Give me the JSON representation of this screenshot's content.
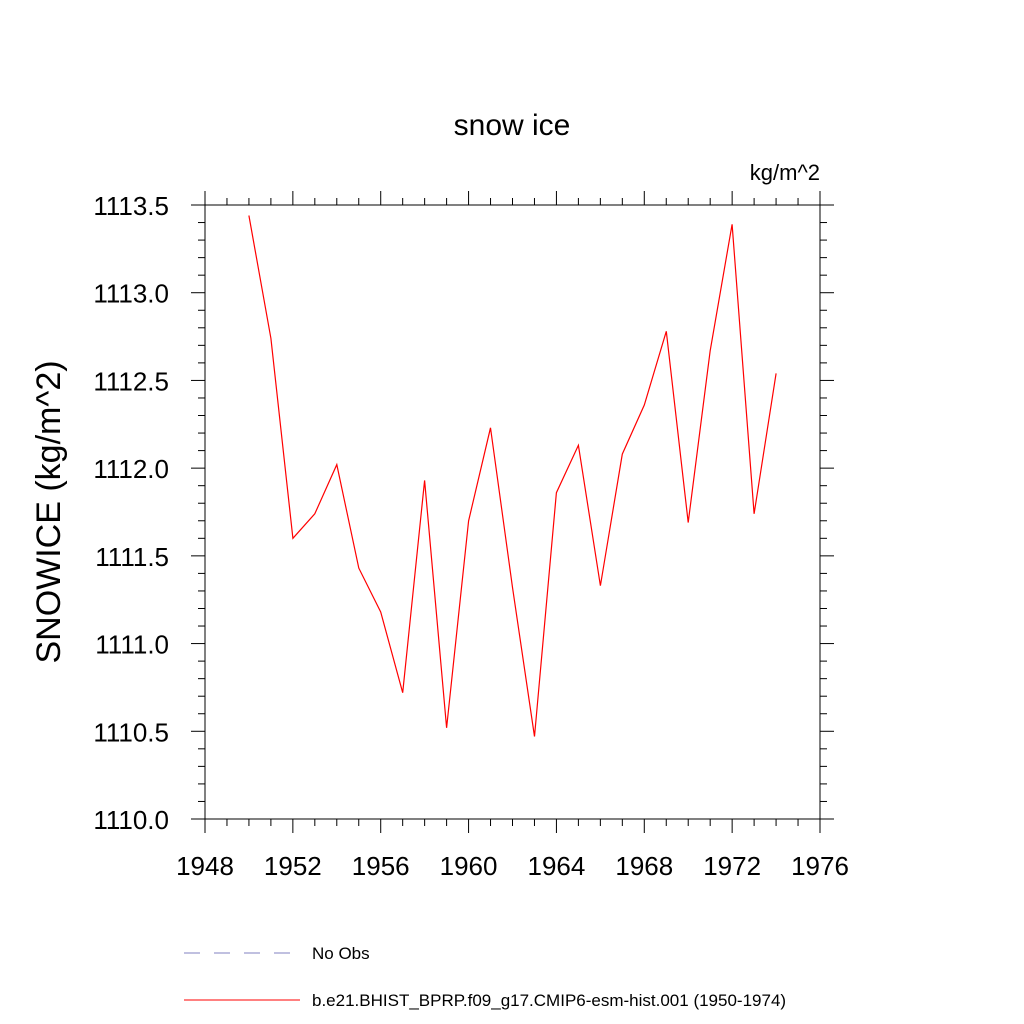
{
  "chart_data": {
    "type": "line",
    "title": "snow ice",
    "units_label": "kg/m^2",
    "ylabel": "SNOWICE  (kg/m^2)",
    "xlabel": "",
    "xlim": [
      1948,
      1976
    ],
    "ylim": [
      1110.0,
      1113.5
    ],
    "x_ticks": [
      1948,
      1952,
      1956,
      1960,
      1964,
      1968,
      1972,
      1976
    ],
    "x_tick_labels": [
      "1948",
      "1952",
      "1956",
      "1960",
      "1964",
      "1968",
      "1972",
      "1976"
    ],
    "y_ticks": [
      1110.0,
      1110.5,
      1111.0,
      1111.5,
      1112.0,
      1112.5,
      1113.0,
      1113.5
    ],
    "y_tick_labels": [
      "1110.0",
      "1110.5",
      "1111.0",
      "1111.5",
      "1112.0",
      "1112.5",
      "1113.0",
      "1113.5"
    ],
    "grid": false,
    "legend_position": "bottom",
    "series": [
      {
        "name": "b.e21.BHIST_BPRP.f09_g17.CMIP6-esm-hist.001 (1950-1974)",
        "color": "#ff0000",
        "style": "solid",
        "x": [
          1950,
          1951,
          1952,
          1953,
          1954,
          1955,
          1956,
          1957,
          1958,
          1959,
          1960,
          1961,
          1962,
          1963,
          1964,
          1965,
          1966,
          1967,
          1968,
          1969,
          1970,
          1971,
          1972,
          1973,
          1974
        ],
        "y": [
          1113.44,
          1112.74,
          1111.6,
          1111.74,
          1112.02,
          1111.43,
          1111.18,
          1110.72,
          1111.93,
          1110.52,
          1111.7,
          1112.23,
          1111.32,
          1110.47,
          1111.86,
          1112.13,
          1111.33,
          1112.08,
          1112.36,
          1112.78,
          1111.69,
          1112.67,
          1113.39,
          1111.74,
          1112.54
        ]
      }
    ],
    "legend": [
      {
        "label": "No Obs",
        "color": "#8080c0",
        "style": "dashed"
      },
      {
        "label": "b.e21.BHIST_BPRP.f09_g17.CMIP6-esm-hist.001 (1950-1974)",
        "color": "#ff0000",
        "style": "solid"
      }
    ]
  }
}
